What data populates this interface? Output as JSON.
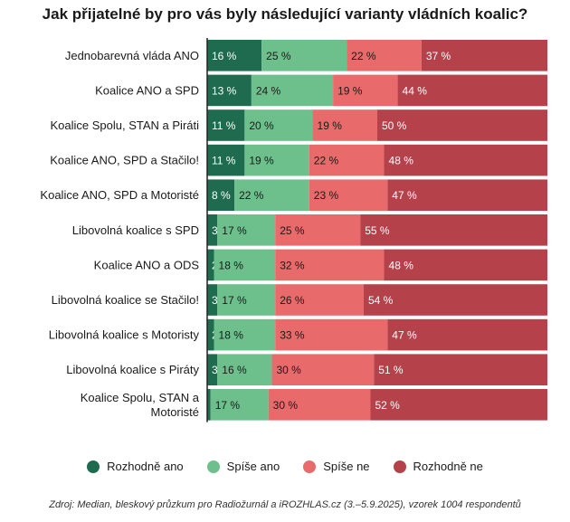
{
  "chart_data": {
    "type": "bar",
    "stacked": true,
    "orientation": "horizontal",
    "title": "Jak přijatelné by pro vás byly následující varianty vládních koalic?",
    "categories": [
      "Jednobarevná vláda ANO",
      "Koalice ANO a SPD",
      "Koalice Spolu, STAN a Piráti",
      "Koalice ANO, SPD a Stačilo!",
      "Koalice ANO, SPD a Motoristé",
      "Libovolná koalice s SPD",
      "Koalice ANO a ODS",
      "Libovolná koalice se Stačilo!",
      "Libovolná koalice s Motoristy",
      "Libovolná koalice s Piráty",
      "Koalice Spolu, STAN a Motoristé"
    ],
    "series": [
      {
        "name": "Rozhodně ano",
        "color": "#1f6b4f",
        "values": [
          16,
          13,
          11,
          11,
          8,
          3,
          2,
          3,
          2,
          3,
          1
        ]
      },
      {
        "name": "Spíše ano",
        "color": "#6dbf8c",
        "values": [
          25,
          24,
          20,
          19,
          22,
          17,
          18,
          17,
          18,
          16,
          17
        ]
      },
      {
        "name": "Spíše ne",
        "color": "#e86a6a",
        "values": [
          22,
          19,
          19,
          22,
          23,
          25,
          32,
          26,
          33,
          30,
          30
        ]
      },
      {
        "name": "Rozhodně ne",
        "color": "#b5414a",
        "values": [
          37,
          44,
          50,
          48,
          47,
          55,
          48,
          54,
          47,
          51,
          52
        ]
      }
    ],
    "value_suffix": " %",
    "xlim": [
      0,
      100
    ],
    "legend_position": "bottom"
  },
  "source": "Zdroj: Median, bleskový průzkum pro Radiožurnál a iROZHLAS.cz (3.–5.9.2025), vzorek 1004 respondentů"
}
